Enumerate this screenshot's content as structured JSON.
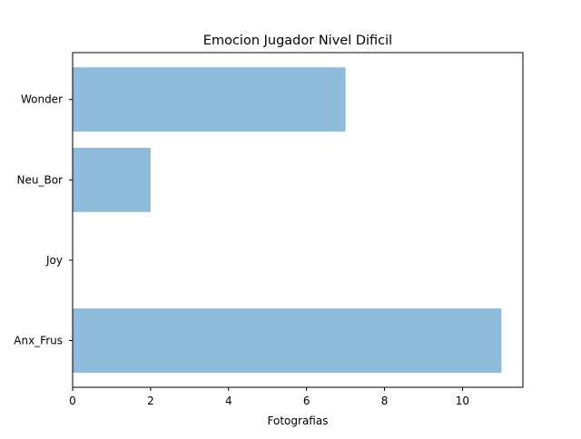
{
  "chart_data": {
    "type": "bar",
    "orientation": "horizontal",
    "title": "Emocion Jugador Nivel Dificil",
    "xlabel": "Fotografias",
    "ylabel": "",
    "categories": [
      "Anx_Frus",
      "Joy",
      "Neu_Bor",
      "Wonder"
    ],
    "values": [
      11,
      0,
      2,
      7
    ],
    "xlim": [
      0,
      11.55
    ],
    "xticks": [
      0,
      2,
      4,
      6,
      8,
      10
    ],
    "grid": false,
    "bar_color": "#8fbbda"
  }
}
